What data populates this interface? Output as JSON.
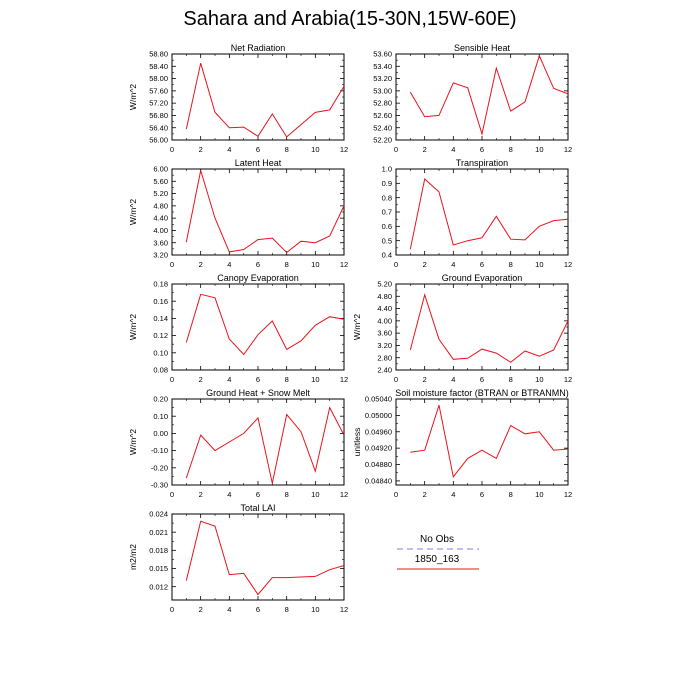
{
  "title": "Sahara and Arabia(15-30N,15W-60E)",
  "colors": {
    "model_line": "#e8141c",
    "obs_line": "#9b9be6",
    "axis": "#000000"
  },
  "legend": {
    "entries": [
      {
        "label": "No Obs",
        "style": "dashed",
        "color": "#9b9be6"
      },
      {
        "label": "1850_163",
        "style": "solid",
        "color": "#e8141c"
      }
    ]
  },
  "chart_data": [
    {
      "type": "line",
      "title": "Net Radiation",
      "ylabel": "W/m^2",
      "x": [
        1,
        2,
        3,
        4,
        5,
        6,
        7,
        8,
        9,
        10,
        11,
        12
      ],
      "xlim": [
        0,
        12
      ],
      "xticks": [
        "0",
        "2",
        "4",
        "6",
        "8",
        "10",
        "12"
      ],
      "ylim": [
        56.0,
        58.8
      ],
      "yticks": [
        "56.00",
        "56.40",
        "56.80",
        "57.20",
        "57.60",
        "58.00",
        "58.40",
        "58.80"
      ],
      "series": [
        {
          "name": "1850_163",
          "values": [
            56.35,
            58.5,
            56.9,
            56.4,
            56.42,
            56.12,
            56.85,
            56.1,
            56.5,
            56.9,
            56.98,
            57.75
          ]
        }
      ]
    },
    {
      "type": "line",
      "title": "Sensible Heat",
      "ylabel": "",
      "x": [
        1,
        2,
        3,
        4,
        5,
        6,
        7,
        8,
        9,
        10,
        11,
        12
      ],
      "xlim": [
        0,
        12
      ],
      "xticks": [
        "0",
        "2",
        "4",
        "6",
        "8",
        "10",
        "12"
      ],
      "ylim": [
        52.2,
        53.6
      ],
      "yticks": [
        "52.20",
        "52.40",
        "52.60",
        "52.80",
        "53.00",
        "53.20",
        "53.40",
        "53.60"
      ],
      "series": [
        {
          "name": "1850_163",
          "values": [
            52.98,
            52.58,
            52.6,
            53.13,
            53.05,
            52.3,
            53.37,
            52.67,
            52.82,
            53.57,
            53.04,
            52.95
          ]
        }
      ]
    },
    {
      "type": "line",
      "title": "Latent Heat",
      "ylabel": "W/m^2",
      "x": [
        1,
        2,
        3,
        4,
        5,
        6,
        7,
        8,
        9,
        10,
        11,
        12
      ],
      "xlim": [
        0,
        12
      ],
      "xticks": [
        "0",
        "2",
        "4",
        "6",
        "8",
        "10",
        "12"
      ],
      "ylim": [
        3.2,
        6.0
      ],
      "yticks": [
        "3.20",
        "3.60",
        "4.00",
        "4.40",
        "4.80",
        "5.20",
        "5.60",
        "6.00"
      ],
      "series": [
        {
          "name": "1850_163",
          "values": [
            3.62,
            5.95,
            4.4,
            3.3,
            3.38,
            3.7,
            3.75,
            3.28,
            3.65,
            3.6,
            3.82,
            4.8
          ]
        }
      ]
    },
    {
      "type": "line",
      "title": "Transpiration",
      "ylabel": "",
      "x": [
        1,
        2,
        3,
        4,
        5,
        6,
        7,
        8,
        9,
        10,
        11,
        12
      ],
      "xlim": [
        0,
        12
      ],
      "xticks": [
        "0",
        "2",
        "4",
        "6",
        "8",
        "10",
        "12"
      ],
      "ylim": [
        0.4,
        1.0
      ],
      "yticks": [
        "0.4",
        "0.5",
        "0.6",
        "0.7",
        "0.8",
        "0.9",
        "1.0"
      ],
      "series": [
        {
          "name": "1850_163",
          "values": [
            0.44,
            0.93,
            0.84,
            0.47,
            0.5,
            0.52,
            0.67,
            0.51,
            0.505,
            0.6,
            0.64,
            0.65
          ]
        }
      ]
    },
    {
      "type": "line",
      "title": "Canopy Evaporation",
      "ylabel": "W/m^2",
      "x": [
        1,
        2,
        3,
        4,
        5,
        6,
        7,
        8,
        9,
        10,
        11,
        12
      ],
      "xlim": [
        0,
        12
      ],
      "xticks": [
        "0",
        "2",
        "4",
        "6",
        "8",
        "10",
        "12"
      ],
      "ylim": [
        0.08,
        0.18
      ],
      "yticks": [
        "0.08",
        "0.10",
        "0.12",
        "0.14",
        "0.16",
        "0.18"
      ],
      "series": [
        {
          "name": "1850_163",
          "values": [
            0.112,
            0.168,
            0.164,
            0.116,
            0.098,
            0.121,
            0.137,
            0.104,
            0.114,
            0.132,
            0.142,
            0.139
          ]
        }
      ]
    },
    {
      "type": "line",
      "title": "Ground Evaporation",
      "ylabel": "W/m^2",
      "x": [
        1,
        2,
        3,
        4,
        5,
        6,
        7,
        8,
        9,
        10,
        11,
        12
      ],
      "xlim": [
        0,
        12
      ],
      "xticks": [
        "0",
        "2",
        "4",
        "6",
        "8",
        "10",
        "12"
      ],
      "ylim": [
        2.4,
        5.2
      ],
      "yticks": [
        "2.40",
        "2.80",
        "3.20",
        "3.60",
        "4.00",
        "4.40",
        "4.80",
        "5.20"
      ],
      "series": [
        {
          "name": "1850_163",
          "values": [
            3.05,
            4.85,
            3.4,
            2.75,
            2.78,
            3.08,
            2.95,
            2.65,
            3.02,
            2.85,
            3.05,
            4.0
          ]
        }
      ]
    },
    {
      "type": "line",
      "title": "Ground Heat + Snow Melt",
      "ylabel": "W/m^2",
      "x": [
        1,
        2,
        3,
        4,
        5,
        6,
        7,
        8,
        9,
        10,
        11,
        12
      ],
      "xlim": [
        0,
        12
      ],
      "xticks": [
        "0",
        "2",
        "4",
        "6",
        "8",
        "10",
        "12"
      ],
      "ylim": [
        -0.3,
        0.2
      ],
      "yticks": [
        "-0.30",
        "-0.20",
        "-0.10",
        "0.00",
        "0.10",
        "0.20"
      ],
      "series": [
        {
          "name": "1850_163",
          "values": [
            -0.26,
            -0.01,
            -0.1,
            -0.05,
            0.0,
            0.09,
            -0.29,
            0.11,
            0.01,
            -0.22,
            0.15,
            -0.01
          ]
        }
      ]
    },
    {
      "type": "line",
      "title": "Soil moisture factor (BTRAN or BTRANMN)",
      "ylabel": "unitless",
      "x": [
        1,
        2,
        3,
        4,
        5,
        6,
        7,
        8,
        9,
        10,
        11,
        12
      ],
      "xlim": [
        0,
        12
      ],
      "xticks": [
        "0",
        "2",
        "4",
        "6",
        "8",
        "10",
        "12"
      ],
      "ylim": [
        0.0483,
        0.0504
      ],
      "yticks": [
        "0.04840",
        "0.04880",
        "0.04920",
        "0.04960",
        "0.05000",
        "0.05040"
      ],
      "series": [
        {
          "name": "1850_163",
          "values": [
            0.0491,
            0.04915,
            0.05025,
            0.0485,
            0.04895,
            0.04915,
            0.04895,
            0.04975,
            0.04955,
            0.0496,
            0.04915,
            0.04918
          ]
        }
      ]
    },
    {
      "type": "line",
      "title": "Total LAI",
      "ylabel": "m2/m2",
      "x": [
        1,
        2,
        3,
        4,
        5,
        6,
        7,
        8,
        9,
        10,
        11,
        12
      ],
      "xlim": [
        0,
        12
      ],
      "xticks": [
        "0",
        "2",
        "4",
        "6",
        "8",
        "10",
        "12"
      ],
      "ylim": [
        0.0098,
        0.024
      ],
      "yticks": [
        "0.012",
        "0.015",
        "0.018",
        "0.021",
        "0.024"
      ],
      "series": [
        {
          "name": "1850_163",
          "values": [
            0.013,
            0.0228,
            0.022,
            0.014,
            0.0142,
            0.0107,
            0.0135,
            0.0135,
            0.0136,
            0.0137,
            0.0148,
            0.0155
          ]
        }
      ]
    }
  ]
}
